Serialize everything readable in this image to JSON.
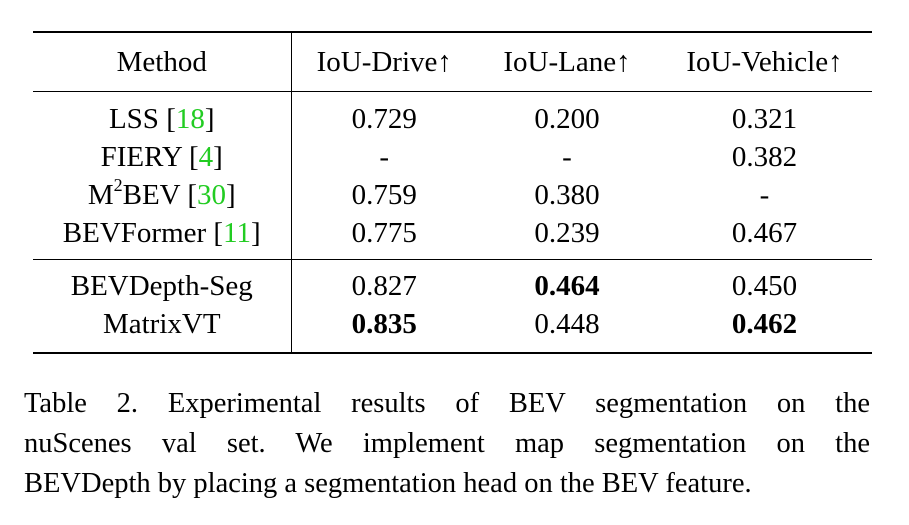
{
  "table": {
    "headers": [
      "Method",
      "IoU-Drive↑",
      "IoU-Lane↑",
      "IoU-Vehicle↑"
    ],
    "group1": [
      {
        "method": "LSS [",
        "cite": "18",
        "close": "]",
        "sup": "",
        "drive": "0.729",
        "lane": "0.200",
        "vehicle": "0.321"
      },
      {
        "method": "FIERY [",
        "cite": "4",
        "close": "]",
        "sup": "",
        "drive": "-",
        "lane": "-",
        "vehicle": "0.382"
      },
      {
        "method_pre": "M",
        "sup": "2",
        "method": "BEV [",
        "cite": "30",
        "close": "]",
        "drive": "0.759",
        "lane": "0.380",
        "vehicle": "-"
      },
      {
        "method": "BEVFormer [",
        "cite": "11",
        "close": "]",
        "sup": "",
        "drive": "0.775",
        "lane": "0.239",
        "vehicle": "0.467"
      }
    ],
    "group2": [
      {
        "method": "BEVDepth-Seg",
        "drive": "0.827",
        "lane": "0.464",
        "vehicle": "0.450"
      },
      {
        "method": "MatrixVT",
        "drive": "0.835",
        "lane": "0.448",
        "vehicle": "0.462"
      }
    ]
  },
  "caption": {
    "line1": "Table 2.   Experimental results of BEV segmentation on the",
    "line2": "nuScenes val set.   We implement map segmentation on the",
    "line3": "BEVDepth by placing a segmentation head on the BEV feature."
  },
  "colors": {
    "citation": "#22cc22"
  }
}
